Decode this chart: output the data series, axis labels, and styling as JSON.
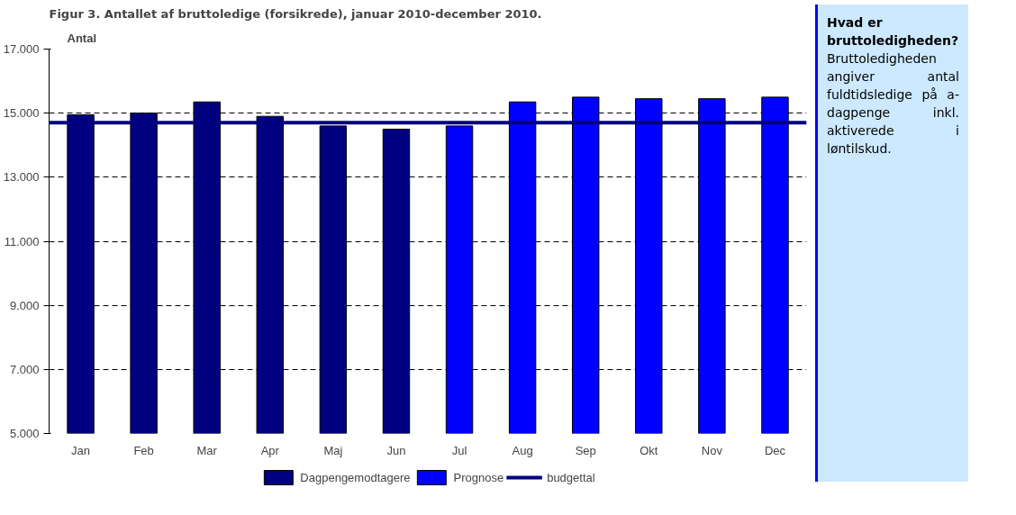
{
  "chart_data": [
    {
      "type": "bar",
      "title": "Figur 3. Antallet af bruttoledige (forsikrede), januar 2010-december 2010.",
      "ylabel": "Antal",
      "categories": [
        "Jan",
        "Feb",
        "Mar",
        "Apr",
        "Maj",
        "Jun",
        "Jul",
        "Aug",
        "Sep",
        "Okt",
        "Nov",
        "Dec"
      ],
      "series": [
        {
          "name": "Dagpengemodtagere",
          "color": "#000080",
          "values": [
            14950,
            15000,
            15350,
            14900,
            14600,
            14500,
            null,
            null,
            null,
            null,
            null,
            null
          ]
        },
        {
          "name": "Prognose",
          "color": "#0000ff",
          "values": [
            null,
            null,
            null,
            null,
            null,
            null,
            14600,
            15350,
            15500,
            15450,
            15450,
            15500
          ]
        }
      ],
      "ylim": [
        5000,
        17000
      ],
      "yticks": [
        {
          "value": 5000,
          "label": "5.000"
        },
        {
          "value": 7000,
          "label": "7.000"
        },
        {
          "value": 9000,
          "label": "9.000"
        },
        {
          "value": 11000,
          "label": "11.000"
        },
        {
          "value": 13000,
          "label": "13.000"
        },
        {
          "value": 15000,
          "label": "15.000"
        },
        {
          "value": 17000,
          "label": "17.000"
        }
      ],
      "ref_lines": [
        {
          "axis": "y",
          "value": 14700,
          "label": "budgettal",
          "color": "#000080"
        }
      ],
      "grid": "y",
      "legend": "bottom"
    },
    {
      "type": "other",
      "title": "Hvad er bruttoledigheden?",
      "annotations": [
        "Bruttoledigheden angiver antal fuldtidsledige på a-dagpenge inkl. aktiverede i løntilskud."
      ]
    }
  ]
}
